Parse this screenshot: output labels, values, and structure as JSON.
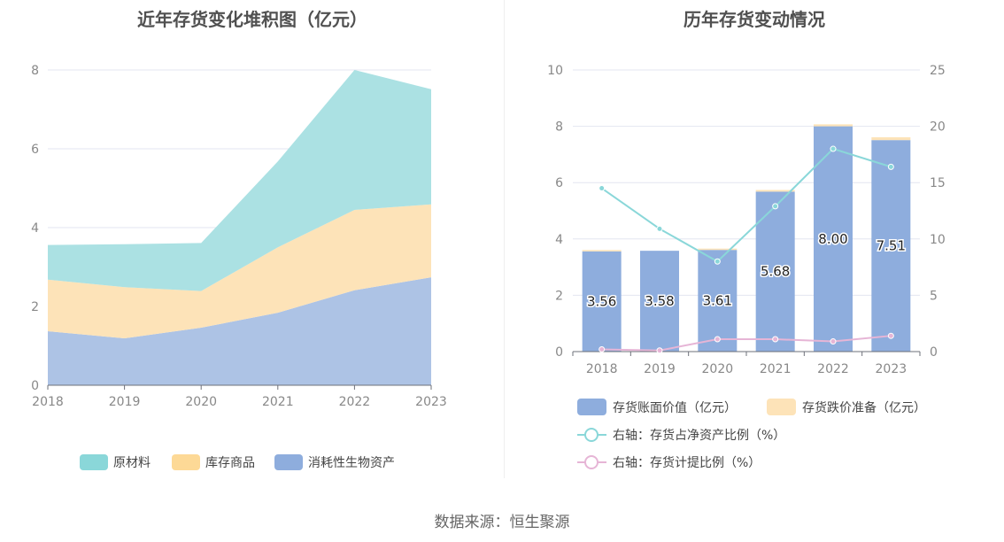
{
  "page": {
    "source": "数据来源：恒生聚源"
  },
  "chart_data": [
    {
      "type": "area",
      "title": "近年存货变化堆积图（亿元）",
      "categories": [
        "2018",
        "2019",
        "2020",
        "2021",
        "2022",
        "2023"
      ],
      "y_ticks": [
        "0",
        "2",
        "4",
        "6",
        "8"
      ],
      "ylim": [
        0,
        8
      ],
      "stacked": true,
      "series": [
        {
          "name": "消耗性生物资产",
          "color": "#adc3e5",
          "legend_color": "#8eaddd",
          "values": [
            1.37,
            1.19,
            1.46,
            1.84,
            2.41,
            2.74
          ]
        },
        {
          "name": "库存商品",
          "color": "#fde3b8",
          "legend_color": "#fdd996",
          "values": [
            1.31,
            1.3,
            0.93,
            1.66,
            2.04,
            1.85
          ]
        },
        {
          "name": "原材料",
          "color": "#abe1e3",
          "legend_color": "#8ad7d9",
          "values": [
            0.88,
            1.09,
            1.22,
            2.18,
            3.55,
            2.92
          ]
        }
      ],
      "legend_position": "bottom"
    },
    {
      "type": "bar",
      "title": "历年存货变动情况",
      "categories": [
        "2018",
        "2019",
        "2020",
        "2021",
        "2022",
        "2023"
      ],
      "y_ticks": [
        "0",
        "2",
        "4",
        "6",
        "8",
        "10"
      ],
      "ylim": [
        0,
        10
      ],
      "y2_ticks": [
        "0",
        "5",
        "10",
        "15",
        "20",
        "25"
      ],
      "y2lim": [
        0,
        25
      ],
      "stacked": true,
      "series": [
        {
          "name": "存货账面价值（亿元）",
          "kind": "bar",
          "color": "#8eaddd",
          "values": [
            3.56,
            3.58,
            3.61,
            5.68,
            8.0,
            7.51
          ],
          "labels": [
            "3.56",
            "3.58",
            "3.61",
            "5.68",
            "8.00",
            "7.51"
          ]
        },
        {
          "name": "存货跌价准备（亿元）",
          "kind": "bar",
          "color": "#fde3b8",
          "values": [
            0.01,
            0.0,
            0.04,
            0.06,
            0.07,
            0.1
          ]
        },
        {
          "name": "右轴：存货占净资产比例（%）",
          "kind": "line",
          "axis": "right",
          "color": "#8ad7d9",
          "values": [
            14.5,
            10.9,
            8.0,
            12.9,
            18.0,
            16.4
          ]
        },
        {
          "name": "右轴：存货计提比例（%）",
          "kind": "line",
          "axis": "right",
          "color": "#e6b5d6",
          "values": [
            0.2,
            0.1,
            1.1,
            1.1,
            0.9,
            1.4
          ]
        }
      ],
      "legend_position": "bottom"
    }
  ]
}
